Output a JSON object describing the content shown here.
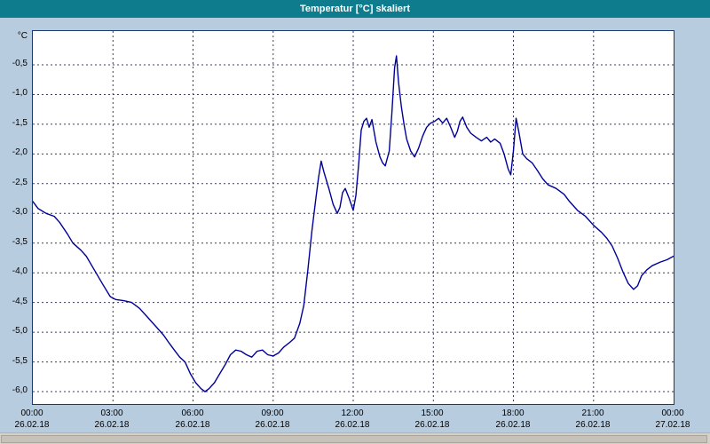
{
  "window": {
    "title": "Temperatur [°C] skaliert"
  },
  "colors": {
    "titlebar": "#0e7c8c",
    "background": "#b8cce0",
    "plot_border": "#1b3a6b",
    "line": "#000099",
    "grid": "#3c3c5e"
  },
  "chart_data": {
    "type": "line",
    "title": "Temperatur [°C] skaliert",
    "xlabel": "",
    "ylabel": "°C",
    "ylim": [
      -6.209,
      0.068
    ],
    "xlim_hours": [
      0,
      24
    ],
    "grid": "dashed",
    "legend": "none",
    "y_ticks": [
      {
        "value": -0.5,
        "label": "-0,5"
      },
      {
        "value": -1.0,
        "label": "-1,0"
      },
      {
        "value": -1.5,
        "label": "-1,5"
      },
      {
        "value": -2.0,
        "label": "-2,0"
      },
      {
        "value": -2.5,
        "label": "-2,5"
      },
      {
        "value": -3.0,
        "label": "-3,0"
      },
      {
        "value": -3.5,
        "label": "-3,5"
      },
      {
        "value": -4.0,
        "label": "-4,0"
      },
      {
        "value": -4.5,
        "label": "-4,5"
      },
      {
        "value": -5.0,
        "label": "-5,0"
      },
      {
        "value": -5.5,
        "label": "-5,5"
      },
      {
        "value": -6.0,
        "label": "-6,0"
      }
    ],
    "x_ticks": [
      {
        "hour": 0,
        "time": "00:00",
        "date": "26.02.18"
      },
      {
        "hour": 3,
        "time": "03:00",
        "date": "26.02.18"
      },
      {
        "hour": 6,
        "time": "06:00",
        "date": "26.02.18"
      },
      {
        "hour": 9,
        "time": "09:00",
        "date": "26.02.18"
      },
      {
        "hour": 12,
        "time": "12:00",
        "date": "26.02.18"
      },
      {
        "hour": 15,
        "time": "15:00",
        "date": "26.02.18"
      },
      {
        "hour": 18,
        "time": "18:00",
        "date": "26.02.18"
      },
      {
        "hour": 21,
        "time": "21:00",
        "date": "26.02.18"
      },
      {
        "hour": 24,
        "time": "00:00",
        "date": "27.02.18"
      }
    ],
    "series": [
      {
        "name": "Temperatur",
        "color": "#000099",
        "points": [
          [
            0,
            -2.8
          ],
          [
            0.2,
            -2.92
          ],
          [
            0.5,
            -3.0
          ],
          [
            0.8,
            -3.05
          ],
          [
            1.0,
            -3.15
          ],
          [
            1.3,
            -3.35
          ],
          [
            1.5,
            -3.5
          ],
          [
            1.8,
            -3.62
          ],
          [
            2.0,
            -3.72
          ],
          [
            2.3,
            -3.95
          ],
          [
            2.6,
            -4.18
          ],
          [
            2.9,
            -4.4
          ],
          [
            3.1,
            -4.45
          ],
          [
            3.4,
            -4.47
          ],
          [
            3.7,
            -4.5
          ],
          [
            4.0,
            -4.6
          ],
          [
            4.3,
            -4.75
          ],
          [
            4.6,
            -4.9
          ],
          [
            4.9,
            -5.05
          ],
          [
            5.1,
            -5.18
          ],
          [
            5.3,
            -5.3
          ],
          [
            5.5,
            -5.42
          ],
          [
            5.7,
            -5.5
          ],
          [
            5.9,
            -5.7
          ],
          [
            6.1,
            -5.85
          ],
          [
            6.3,
            -5.95
          ],
          [
            6.45,
            -6.0
          ],
          [
            6.6,
            -5.95
          ],
          [
            6.8,
            -5.85
          ],
          [
            7.0,
            -5.7
          ],
          [
            7.2,
            -5.55
          ],
          [
            7.4,
            -5.38
          ],
          [
            7.6,
            -5.3
          ],
          [
            7.8,
            -5.32
          ],
          [
            8.0,
            -5.38
          ],
          [
            8.2,
            -5.42
          ],
          [
            8.4,
            -5.32
          ],
          [
            8.6,
            -5.3
          ],
          [
            8.8,
            -5.38
          ],
          [
            9.0,
            -5.4
          ],
          [
            9.2,
            -5.35
          ],
          [
            9.4,
            -5.25
          ],
          [
            9.6,
            -5.18
          ],
          [
            9.8,
            -5.1
          ],
          [
            10.0,
            -4.85
          ],
          [
            10.15,
            -4.55
          ],
          [
            10.3,
            -3.95
          ],
          [
            10.45,
            -3.3
          ],
          [
            10.6,
            -2.75
          ],
          [
            10.7,
            -2.4
          ],
          [
            10.8,
            -2.12
          ],
          [
            10.9,
            -2.3
          ],
          [
            11.0,
            -2.45
          ],
          [
            11.1,
            -2.6
          ],
          [
            11.25,
            -2.85
          ],
          [
            11.4,
            -3.0
          ],
          [
            11.5,
            -2.9
          ],
          [
            11.6,
            -2.65
          ],
          [
            11.7,
            -2.58
          ],
          [
            11.85,
            -2.75
          ],
          [
            12.0,
            -2.95
          ],
          [
            12.1,
            -2.7
          ],
          [
            12.2,
            -2.2
          ],
          [
            12.3,
            -1.6
          ],
          [
            12.4,
            -1.45
          ],
          [
            12.5,
            -1.4
          ],
          [
            12.6,
            -1.55
          ],
          [
            12.7,
            -1.42
          ],
          [
            12.85,
            -1.8
          ],
          [
            13.0,
            -2.05
          ],
          [
            13.1,
            -2.15
          ],
          [
            13.2,
            -2.2
          ],
          [
            13.35,
            -1.95
          ],
          [
            13.45,
            -1.3
          ],
          [
            13.55,
            -0.55
          ],
          [
            13.62,
            -0.35
          ],
          [
            13.7,
            -0.8
          ],
          [
            13.8,
            -1.2
          ],
          [
            13.9,
            -1.5
          ],
          [
            14.0,
            -1.75
          ],
          [
            14.15,
            -1.95
          ],
          [
            14.3,
            -2.05
          ],
          [
            14.45,
            -1.9
          ],
          [
            14.6,
            -1.7
          ],
          [
            14.75,
            -1.55
          ],
          [
            14.9,
            -1.48
          ],
          [
            15.05,
            -1.45
          ],
          [
            15.2,
            -1.4
          ],
          [
            15.35,
            -1.48
          ],
          [
            15.5,
            -1.4
          ],
          [
            15.65,
            -1.55
          ],
          [
            15.8,
            -1.72
          ],
          [
            15.9,
            -1.62
          ],
          [
            16.0,
            -1.45
          ],
          [
            16.1,
            -1.38
          ],
          [
            16.25,
            -1.55
          ],
          [
            16.4,
            -1.65
          ],
          [
            16.6,
            -1.72
          ],
          [
            16.8,
            -1.78
          ],
          [
            17.0,
            -1.72
          ],
          [
            17.15,
            -1.8
          ],
          [
            17.3,
            -1.75
          ],
          [
            17.5,
            -1.82
          ],
          [
            17.65,
            -2.0
          ],
          [
            17.8,
            -2.25
          ],
          [
            17.9,
            -2.35
          ],
          [
            18.0,
            -1.95
          ],
          [
            18.1,
            -1.4
          ],
          [
            18.2,
            -1.62
          ],
          [
            18.35,
            -2.0
          ],
          [
            18.5,
            -2.08
          ],
          [
            18.7,
            -2.15
          ],
          [
            18.9,
            -2.28
          ],
          [
            19.1,
            -2.42
          ],
          [
            19.3,
            -2.52
          ],
          [
            19.6,
            -2.58
          ],
          [
            19.9,
            -2.68
          ],
          [
            20.1,
            -2.8
          ],
          [
            20.4,
            -2.95
          ],
          [
            20.7,
            -3.05
          ],
          [
            21.0,
            -3.2
          ],
          [
            21.3,
            -3.32
          ],
          [
            21.5,
            -3.42
          ],
          [
            21.7,
            -3.55
          ],
          [
            21.9,
            -3.75
          ],
          [
            22.1,
            -3.98
          ],
          [
            22.3,
            -4.18
          ],
          [
            22.5,
            -4.28
          ],
          [
            22.65,
            -4.22
          ],
          [
            22.8,
            -4.05
          ],
          [
            23.0,
            -3.95
          ],
          [
            23.2,
            -3.88
          ],
          [
            23.5,
            -3.82
          ],
          [
            23.75,
            -3.78
          ],
          [
            24.0,
            -3.72
          ]
        ]
      }
    ]
  }
}
